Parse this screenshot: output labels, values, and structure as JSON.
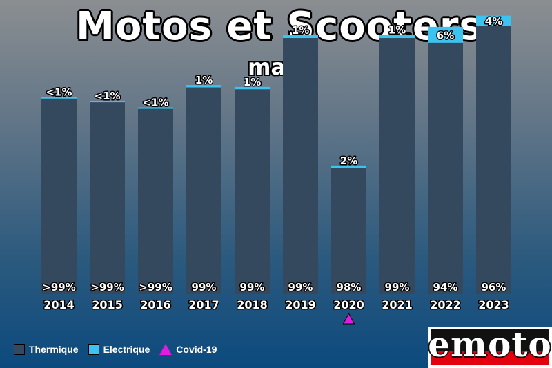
{
  "header": {
    "title": "Motos et Scooters",
    "subtitle": "mars"
  },
  "chart_data": {
    "type": "bar",
    "stacked": true,
    "categories": [
      "2014",
      "2015",
      "2016",
      "2017",
      "2018",
      "2019",
      "2020",
      "2021",
      "2022",
      "2023"
    ],
    "series": [
      {
        "name": "Thermique",
        "color": "#34495e",
        "values": [
          210,
          206,
          199,
          222,
          220,
          275,
          135,
          275,
          270,
          288
        ],
        "labels": [
          ">99%",
          ">99%",
          ">99%",
          "99%",
          "99%",
          "99%",
          "98%",
          "99%",
          "94%",
          "96%"
        ]
      },
      {
        "name": "Electrique",
        "color": "#3bc3f2",
        "values": [
          0.8,
          1,
          1,
          2.5,
          2.5,
          3,
          3,
          3.5,
          17,
          11
        ],
        "labels": [
          "<1%",
          "<1%",
          "<1%",
          "1%",
          "1%",
          "1%",
          "2%",
          "1%",
          "6%",
          "4%"
        ]
      }
    ],
    "annotations": [
      {
        "category": "2020",
        "marker": "triangle",
        "color": "#e21ae2",
        "label": "Covid-19"
      }
    ],
    "legend_position": "bottom-left",
    "ylim": [
      0,
      300
    ],
    "grid": false
  },
  "legend": [
    {
      "label": "Thermique",
      "color": "#34495e",
      "shape": "square"
    },
    {
      "label": "Electrique",
      "color": "#3bc3f2",
      "shape": "square"
    },
    {
      "label": "Covid-19",
      "color": "#e21ae2",
      "shape": "triangle"
    }
  ],
  "logo": {
    "text": "emoto"
  }
}
